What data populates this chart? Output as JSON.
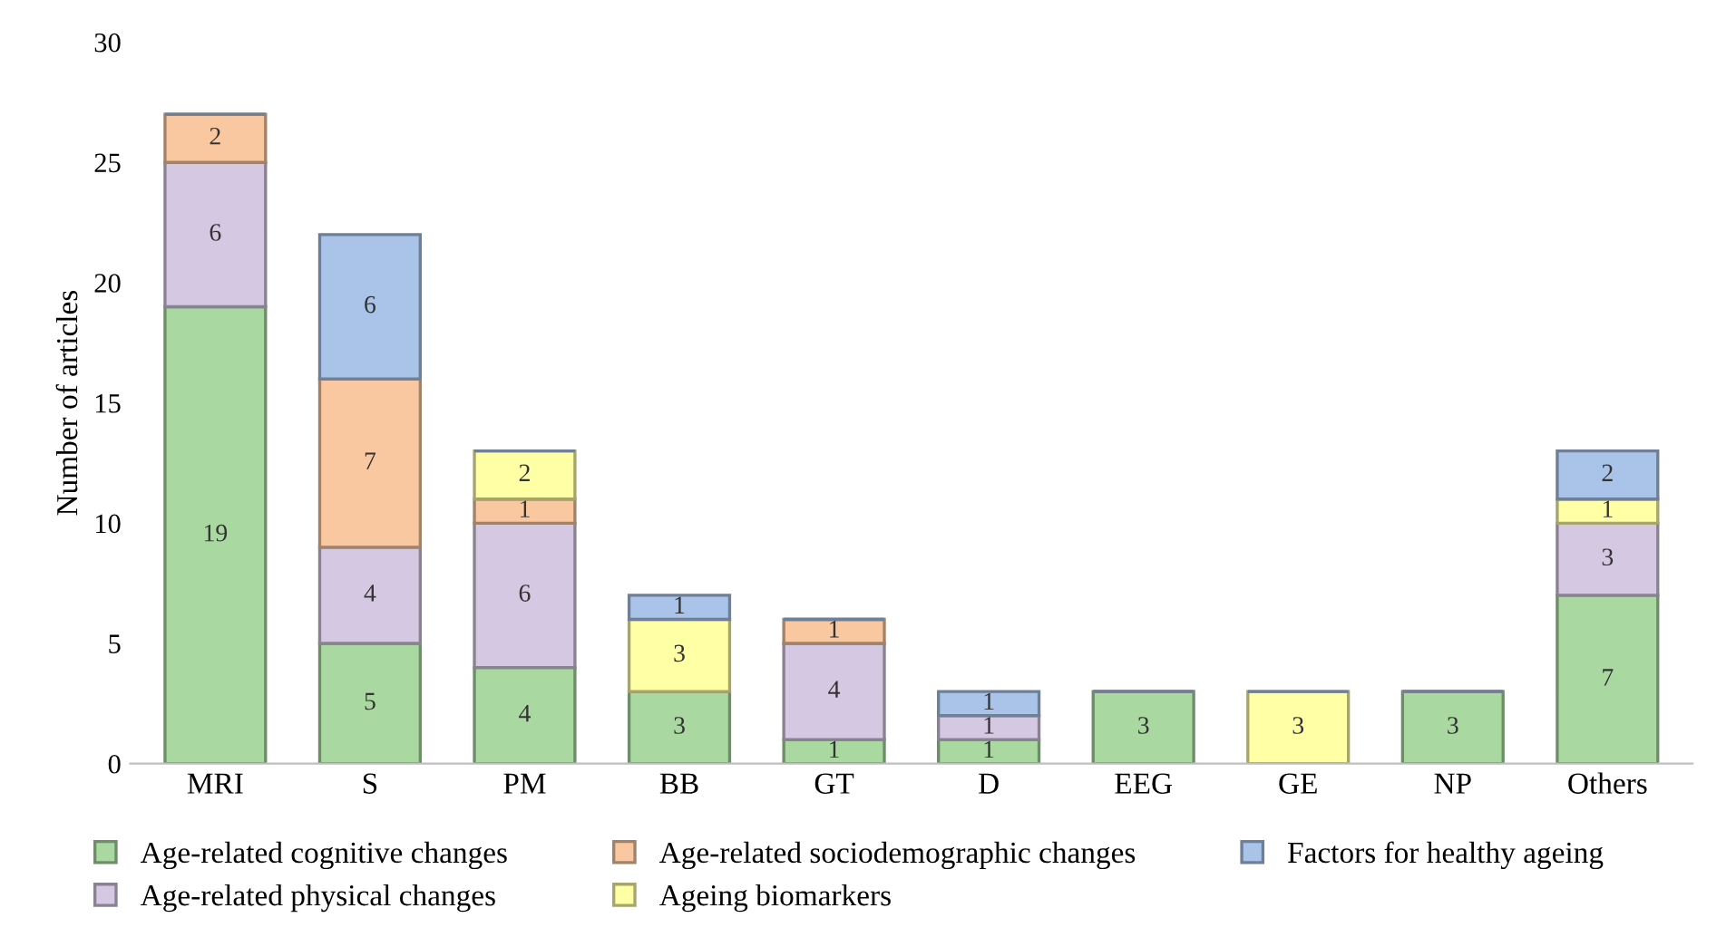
{
  "chart_data": {
    "type": "bar",
    "stacked": true,
    "ylabel": "Number of articles",
    "categories": [
      "MRI",
      "S",
      "PM",
      "BB",
      "GT",
      "D",
      "EEG",
      "GE",
      "NP",
      "Others"
    ],
    "series": [
      {
        "name": "Age-related cognitive changes",
        "color": "#a9d9a0",
        "values": [
          19,
          5,
          4,
          3,
          1,
          1,
          3,
          null,
          3,
          7
        ]
      },
      {
        "name": "Age-related physical changes",
        "color": "#d5c8e2",
        "values": [
          6,
          4,
          6,
          null,
          4,
          1,
          null,
          null,
          null,
          3
        ]
      },
      {
        "name": "Age-related sociodemographic changes",
        "color": "#f9c8a0",
        "values": [
          2,
          7,
          1,
          null,
          1,
          null,
          null,
          null,
          null,
          null
        ]
      },
      {
        "name": "Ageing biomarkers",
        "color": "#ffffa6",
        "values": [
          null,
          null,
          2,
          3,
          null,
          null,
          null,
          3,
          null,
          1
        ]
      },
      {
        "name": "Factors for healthy ageing",
        "color": "#a9c4e8",
        "values": [
          null,
          6,
          null,
          1,
          null,
          1,
          null,
          null,
          null,
          2
        ]
      }
    ],
    "ylim": [
      0,
      30
    ],
    "yticks": [
      0,
      5,
      10,
      15,
      20,
      25,
      30
    ],
    "grid": false,
    "legend": "bottom",
    "data_labels": true
  }
}
